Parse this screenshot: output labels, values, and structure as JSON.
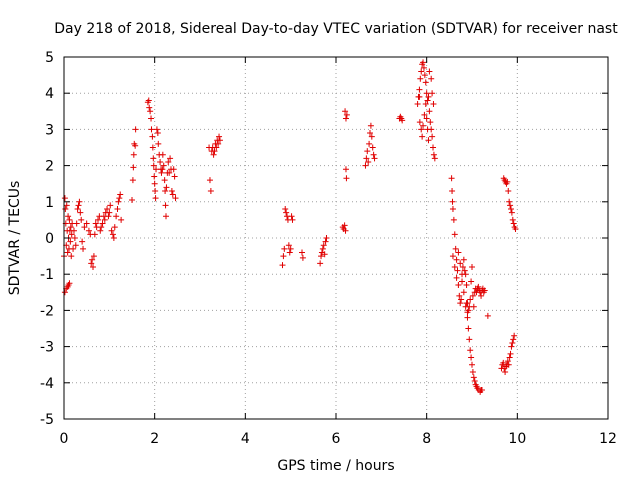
{
  "chart_data": {
    "type": "scatter",
    "title": "Day 218 of 2018, Sidereal Day-to-day VTEC variation (SDTVAR) for receiver nast",
    "xlabel": "GPS time / hours",
    "ylabel": "SDTVAR / TECUs",
    "xlim": [
      0,
      12
    ],
    "ylim": [
      -5,
      5
    ],
    "xticks": [
      "0",
      "2",
      "4",
      "6",
      "8",
      "10",
      "12"
    ],
    "yticks": [
      "-5",
      "-4",
      "-3",
      "-2",
      "-1",
      "0",
      "1",
      "2",
      "3",
      "4",
      "5"
    ],
    "grid": true,
    "marker": "+",
    "color": "#e00000",
    "series": [
      {
        "name": "SDTVAR",
        "points": [
          [
            0.0,
            -0.5
          ],
          [
            0.02,
            1.1
          ],
          [
            0.03,
            0.8
          ],
          [
            0.04,
            0.4
          ],
          [
            0.05,
            -0.2
          ],
          [
            0.06,
            0.9
          ],
          [
            0.07,
            0.2
          ],
          [
            0.08,
            -0.4
          ],
          [
            0.09,
            0.6
          ],
          [
            0.1,
            0.0
          ],
          [
            0.11,
            -0.3
          ],
          [
            0.12,
            0.5
          ],
          [
            0.13,
            0.2
          ],
          [
            0.14,
            -0.1
          ],
          [
            0.15,
            0.3
          ],
          [
            0.16,
            -0.5
          ],
          [
            0.17,
            0.1
          ],
          [
            0.18,
            0.4
          ],
          [
            0.2,
            -0.3
          ],
          [
            0.22,
            0.2
          ],
          [
            0.24,
            0.0
          ],
          [
            0.26,
            -0.2
          ],
          [
            0.28,
            0.4
          ],
          [
            0.3,
            0.8
          ],
          [
            0.32,
            0.9
          ],
          [
            0.34,
            1.0
          ],
          [
            0.36,
            0.7
          ],
          [
            0.38,
            0.5
          ],
          [
            0.4,
            -0.1
          ],
          [
            0.42,
            -0.3
          ],
          [
            0.02,
            -1.5
          ],
          [
            0.05,
            -1.4
          ],
          [
            0.08,
            -1.35
          ],
          [
            0.1,
            -1.3
          ],
          [
            0.12,
            -1.25
          ],
          [
            0.45,
            0.3
          ],
          [
            0.5,
            0.4
          ],
          [
            0.55,
            0.2
          ],
          [
            0.58,
            0.1
          ],
          [
            0.6,
            -0.7
          ],
          [
            0.62,
            -0.6
          ],
          [
            0.64,
            -0.8
          ],
          [
            0.66,
            -0.5
          ],
          [
            0.68,
            0.1
          ],
          [
            0.7,
            0.4
          ],
          [
            0.72,
            0.3
          ],
          [
            0.75,
            0.5
          ],
          [
            0.78,
            0.6
          ],
          [
            0.8,
            0.2
          ],
          [
            0.82,
            0.3
          ],
          [
            0.85,
            0.4
          ],
          [
            0.88,
            0.6
          ],
          [
            0.9,
            0.5
          ],
          [
            0.92,
            0.7
          ],
          [
            0.95,
            0.8
          ],
          [
            0.98,
            0.6
          ],
          [
            1.0,
            0.7
          ],
          [
            1.02,
            0.9
          ],
          [
            1.05,
            0.2
          ],
          [
            1.08,
            0.1
          ],
          [
            1.1,
            0.0
          ],
          [
            1.12,
            0.3
          ],
          [
            1.15,
            0.6
          ],
          [
            1.18,
            0.8
          ],
          [
            1.2,
            1.0
          ],
          [
            1.22,
            1.1
          ],
          [
            1.24,
            1.2
          ],
          [
            1.26,
            0.5
          ],
          [
            1.5,
            1.05
          ],
          [
            1.52,
            1.6
          ],
          [
            1.53,
            1.95
          ],
          [
            1.54,
            2.3
          ],
          [
            1.55,
            2.6
          ],
          [
            1.57,
            2.55
          ],
          [
            1.58,
            3.0
          ],
          [
            1.85,
            3.75
          ],
          [
            1.87,
            3.8
          ],
          [
            1.88,
            3.6
          ],
          [
            1.9,
            3.5
          ],
          [
            1.92,
            3.3
          ],
          [
            1.93,
            3.0
          ],
          [
            1.95,
            2.8
          ],
          [
            1.96,
            2.5
          ],
          [
            1.97,
            2.2
          ],
          [
            1.98,
            2.0
          ],
          [
            1.99,
            1.7
          ],
          [
            2.0,
            1.5
          ],
          [
            2.01,
            1.3
          ],
          [
            2.02,
            1.1
          ],
          [
            2.03,
            1.9
          ],
          [
            2.05,
            3.0
          ],
          [
            2.07,
            2.9
          ],
          [
            2.08,
            2.6
          ],
          [
            2.1,
            2.3
          ],
          [
            2.12,
            2.1
          ],
          [
            2.14,
            1.9
          ],
          [
            2.15,
            1.8
          ],
          [
            2.17,
            1.9
          ],
          [
            2.18,
            2.3
          ],
          [
            2.2,
            2.0
          ],
          [
            2.22,
            1.6
          ],
          [
            2.23,
            1.3
          ],
          [
            2.24,
            0.9
          ],
          [
            2.25,
            0.6
          ],
          [
            2.26,
            1.4
          ],
          [
            2.28,
            1.8
          ],
          [
            2.3,
            2.1
          ],
          [
            2.32,
            1.8
          ],
          [
            2.34,
            2.2
          ],
          [
            2.36,
            1.9
          ],
          [
            2.38,
            1.3
          ],
          [
            2.4,
            1.2
          ],
          [
            2.42,
            1.9
          ],
          [
            2.44,
            1.7
          ],
          [
            2.46,
            1.1
          ],
          [
            3.2,
            2.5
          ],
          [
            3.22,
            1.6
          ],
          [
            3.24,
            1.3
          ],
          [
            3.26,
            2.4
          ],
          [
            3.28,
            2.5
          ],
          [
            3.3,
            2.3
          ],
          [
            3.32,
            2.4
          ],
          [
            3.34,
            2.6
          ],
          [
            3.36,
            2.5
          ],
          [
            3.38,
            2.7
          ],
          [
            3.4,
            2.6
          ],
          [
            3.42,
            2.8
          ],
          [
            3.44,
            2.7
          ],
          [
            4.82,
            -0.75
          ],
          [
            4.84,
            -0.5
          ],
          [
            4.86,
            -0.3
          ],
          [
            4.88,
            0.8
          ],
          [
            4.9,
            0.7
          ],
          [
            4.92,
            0.6
          ],
          [
            4.94,
            0.5
          ],
          [
            4.96,
            -0.2
          ],
          [
            4.98,
            -0.4
          ],
          [
            5.0,
            -0.3
          ],
          [
            5.02,
            0.6
          ],
          [
            5.04,
            0.5
          ],
          [
            5.25,
            -0.4
          ],
          [
            5.27,
            -0.55
          ],
          [
            5.65,
            -0.7
          ],
          [
            5.67,
            -0.5
          ],
          [
            5.69,
            -0.4
          ],
          [
            5.71,
            -0.3
          ],
          [
            5.73,
            -0.2
          ],
          [
            5.75,
            -0.45
          ],
          [
            5.77,
            -0.1
          ],
          [
            5.79,
            0.0
          ],
          [
            6.15,
            0.3
          ],
          [
            6.17,
            0.25
          ],
          [
            6.19,
            0.35
          ],
          [
            6.21,
            0.2
          ],
          [
            6.22,
            1.9
          ],
          [
            6.23,
            1.65
          ],
          [
            6.2,
            3.5
          ],
          [
            6.22,
            3.3
          ],
          [
            6.24,
            3.4
          ],
          [
            6.65,
            2.0
          ],
          [
            6.67,
            2.2
          ],
          [
            6.69,
            2.4
          ],
          [
            6.71,
            2.1
          ],
          [
            6.73,
            2.6
          ],
          [
            6.75,
            2.9
          ],
          [
            6.77,
            3.1
          ],
          [
            6.79,
            2.8
          ],
          [
            6.81,
            2.5
          ],
          [
            6.83,
            2.3
          ],
          [
            6.85,
            2.2
          ],
          [
            7.4,
            3.3
          ],
          [
            7.42,
            3.35
          ],
          [
            7.44,
            3.3
          ],
          [
            7.46,
            3.25
          ],
          [
            7.8,
            3.7
          ],
          [
            7.82,
            3.9
          ],
          [
            7.84,
            4.1
          ],
          [
            7.86,
            4.4
          ],
          [
            7.88,
            4.6
          ],
          [
            7.9,
            4.8
          ],
          [
            7.92,
            4.85
          ],
          [
            7.94,
            4.7
          ],
          [
            7.96,
            4.5
          ],
          [
            7.98,
            4.3
          ],
          [
            8.0,
            4.0
          ],
          [
            8.02,
            3.8
          ],
          [
            7.85,
            3.2
          ],
          [
            7.88,
            3.0
          ],
          [
            7.9,
            2.8
          ],
          [
            7.92,
            3.1
          ],
          [
            7.95,
            3.4
          ],
          [
            7.98,
            3.7
          ],
          [
            8.0,
            3.3
          ],
          [
            8.02,
            3.0
          ],
          [
            8.04,
            2.7
          ],
          [
            8.06,
            3.5
          ],
          [
            8.08,
            3.2
          ],
          [
            8.1,
            3.0
          ],
          [
            8.12,
            2.8
          ],
          [
            8.14,
            2.5
          ],
          [
            8.16,
            2.3
          ],
          [
            8.18,
            2.2
          ],
          [
            8.06,
            4.6
          ],
          [
            8.1,
            4.4
          ],
          [
            8.12,
            4.0
          ],
          [
            8.15,
            3.7
          ],
          [
            7.84,
            3.9
          ],
          [
            8.04,
            3.9
          ],
          [
            8.55,
            1.65
          ],
          [
            8.56,
            1.3
          ],
          [
            8.57,
            1.0
          ],
          [
            8.58,
            0.8
          ],
          [
            8.6,
            0.5
          ],
          [
            8.62,
            0.1
          ],
          [
            8.64,
            -0.3
          ],
          [
            8.66,
            -0.6
          ],
          [
            8.68,
            -0.9
          ],
          [
            8.7,
            -1.3
          ],
          [
            8.72,
            -1.6
          ],
          [
            8.74,
            -1.8
          ],
          [
            8.76,
            -1.7
          ],
          [
            8.78,
            -1.2
          ],
          [
            8.8,
            -0.8
          ],
          [
            8.82,
            -0.6
          ],
          [
            8.84,
            -0.9
          ],
          [
            8.86,
            -1.0
          ],
          [
            8.88,
            -1.3
          ],
          [
            8.9,
            -1.8
          ],
          [
            8.92,
            -2.0
          ],
          [
            8.94,
            -1.9
          ],
          [
            8.96,
            -1.7
          ],
          [
            8.98,
            -1.2
          ],
          [
            9.0,
            -0.8
          ],
          [
            9.02,
            -1.6
          ],
          [
            9.04,
            -1.9
          ],
          [
            8.58,
            -0.5
          ],
          [
            8.62,
            -0.8
          ],
          [
            8.66,
            -1.1
          ],
          [
            8.7,
            -0.4
          ],
          [
            8.74,
            -0.7
          ],
          [
            8.78,
            -1.0
          ],
          [
            8.82,
            -1.5
          ],
          [
            8.86,
            -1.9
          ],
          [
            8.9,
            -2.05
          ],
          [
            8.88,
            -1.8
          ],
          [
            8.9,
            -2.2
          ],
          [
            8.92,
            -2.5
          ],
          [
            8.94,
            -2.8
          ],
          [
            8.96,
            -3.1
          ],
          [
            8.98,
            -3.3
          ],
          [
            9.0,
            -3.5
          ],
          [
            9.02,
            -3.7
          ],
          [
            9.04,
            -3.85
          ],
          [
            9.06,
            -3.95
          ],
          [
            9.08,
            -4.05
          ],
          [
            9.1,
            -4.1
          ],
          [
            9.12,
            -4.15
          ],
          [
            9.15,
            -4.2
          ],
          [
            9.18,
            -4.25
          ],
          [
            9.2,
            -4.2
          ],
          [
            9.22,
            -4.2
          ],
          [
            9.06,
            -1.5
          ],
          [
            9.08,
            -1.4
          ],
          [
            9.1,
            -1.5
          ],
          [
            9.12,
            -1.4
          ],
          [
            9.14,
            -1.35
          ],
          [
            9.16,
            -1.45
          ],
          [
            9.18,
            -1.5
          ],
          [
            9.2,
            -1.6
          ],
          [
            9.22,
            -1.45
          ],
          [
            9.24,
            -1.4
          ],
          [
            9.26,
            -1.5
          ],
          [
            9.28,
            -1.45
          ],
          [
            9.35,
            -2.15
          ],
          [
            9.65,
            -3.6
          ],
          [
            9.67,
            -3.5
          ],
          [
            9.69,
            -3.45
          ],
          [
            9.71,
            -3.6
          ],
          [
            9.73,
            -3.7
          ],
          [
            9.75,
            -3.55
          ],
          [
            9.77,
            -3.5
          ],
          [
            9.79,
            -3.4
          ],
          [
            9.81,
            -3.5
          ],
          [
            9.83,
            -3.3
          ],
          [
            9.85,
            -3.2
          ],
          [
            9.87,
            -3.0
          ],
          [
            9.89,
            -2.9
          ],
          [
            9.91,
            -2.8
          ],
          [
            9.93,
            -2.7
          ],
          [
            9.7,
            1.65
          ],
          [
            9.72,
            1.6
          ],
          [
            9.74,
            1.55
          ],
          [
            9.76,
            1.5
          ],
          [
            9.78,
            1.55
          ],
          [
            9.8,
            1.3
          ],
          [
            9.82,
            1.0
          ],
          [
            9.84,
            0.9
          ],
          [
            9.86,
            0.8
          ],
          [
            9.88,
            0.7
          ],
          [
            9.9,
            0.5
          ],
          [
            9.92,
            0.4
          ],
          [
            9.94,
            0.3
          ],
          [
            9.96,
            0.25
          ]
        ]
      }
    ]
  }
}
